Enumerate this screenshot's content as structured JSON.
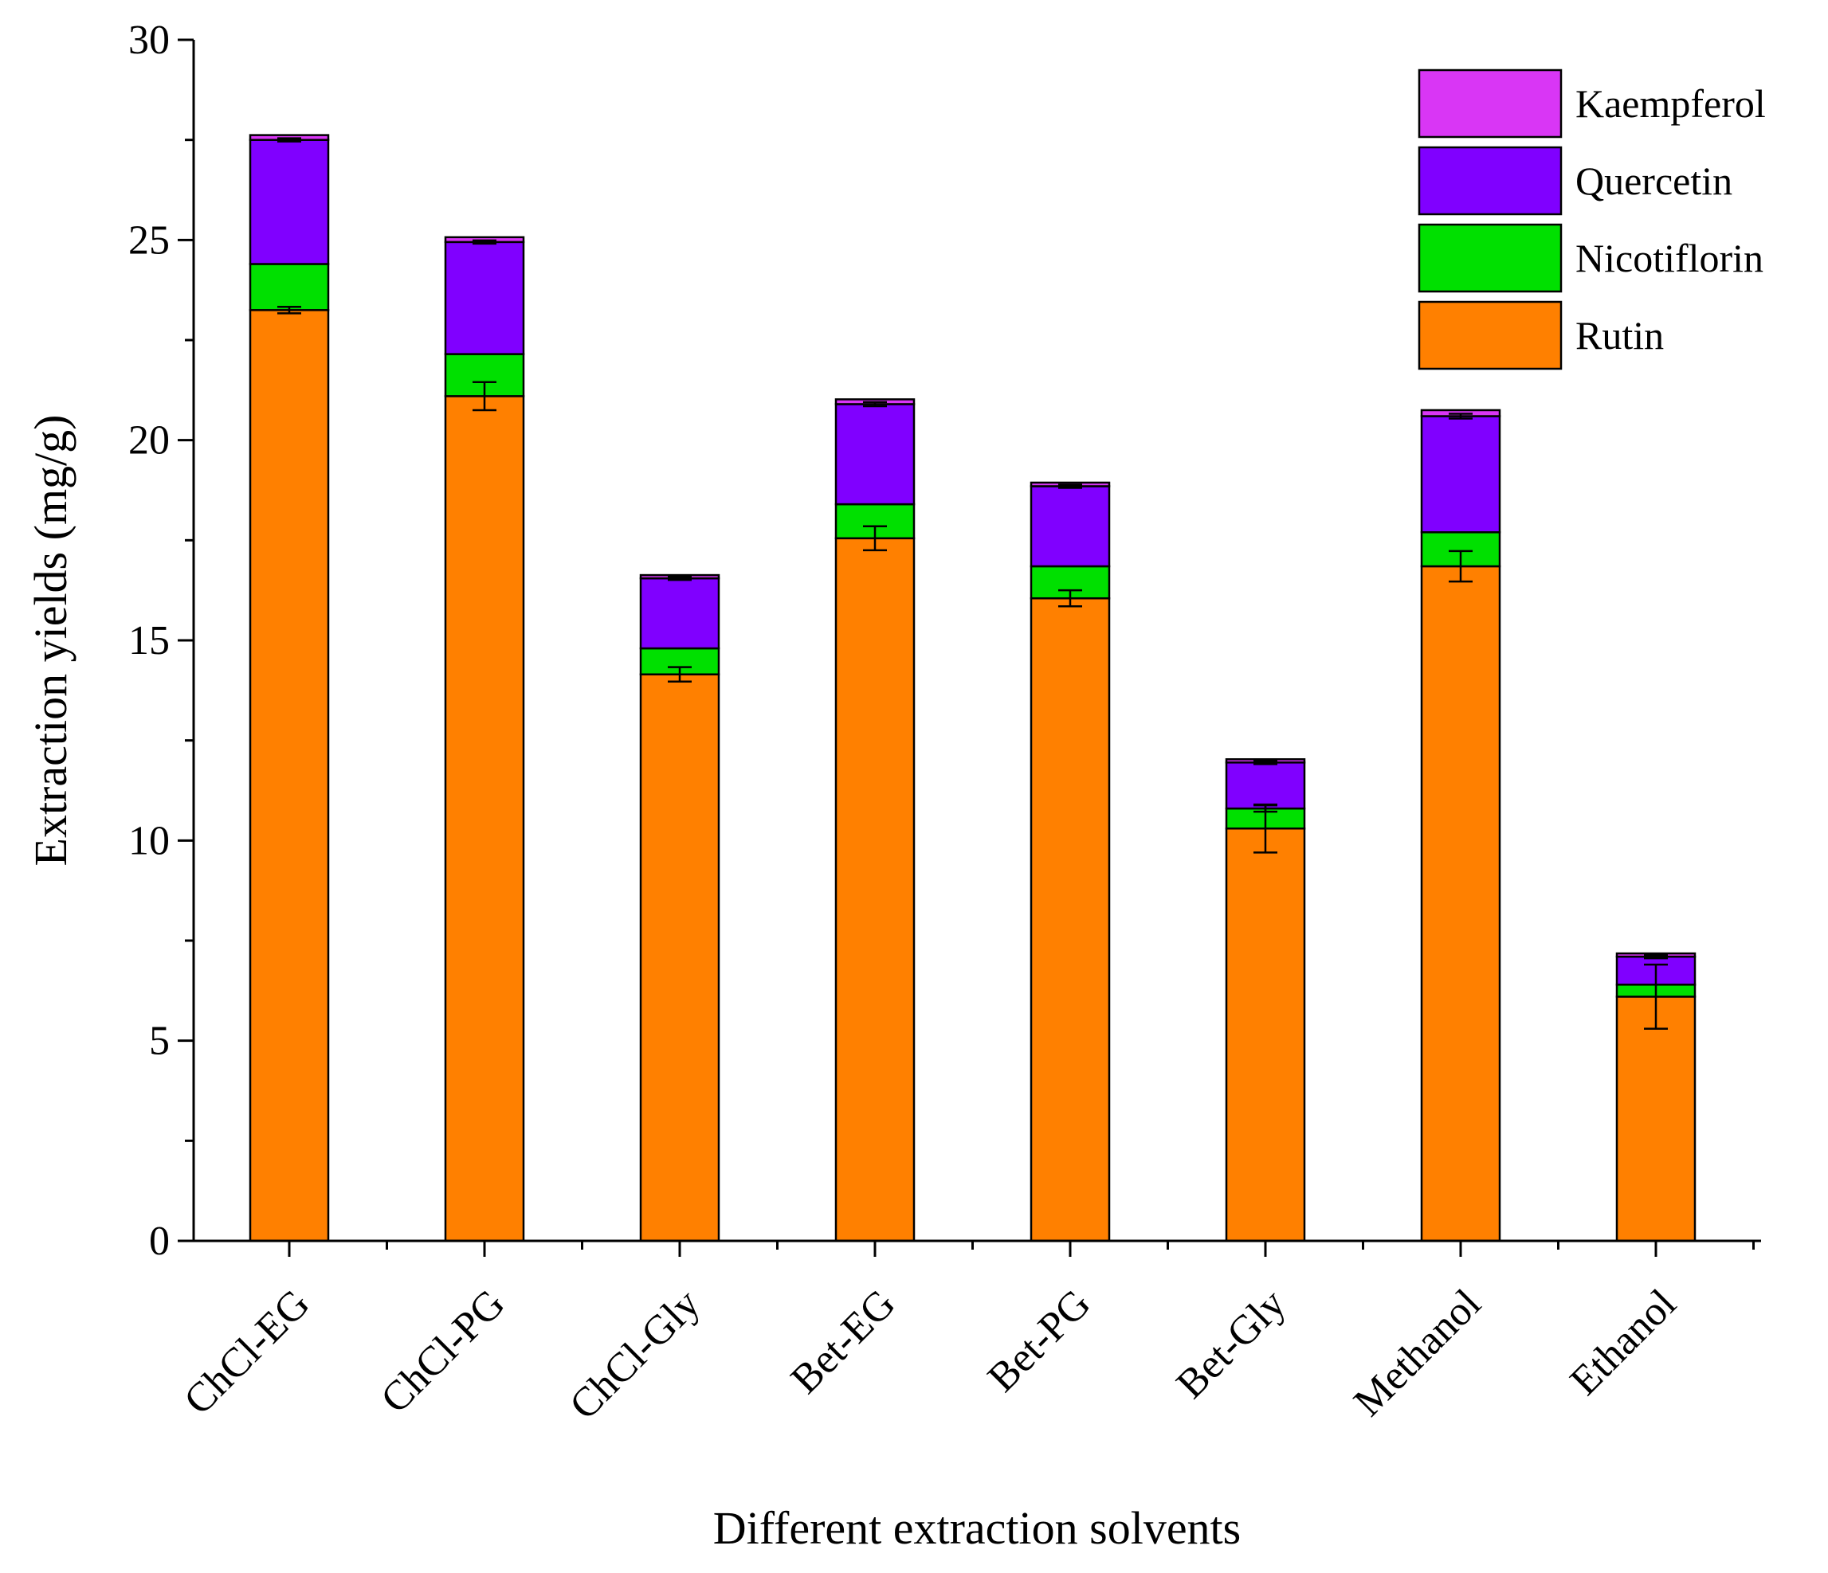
{
  "chart_data": {
    "type": "bar",
    "stacked": true,
    "title": "",
    "xlabel": "Different extraction solvents",
    "ylabel": "Extraction yields (mg/g)",
    "ylim": [
      0,
      30
    ],
    "yticks": [
      0,
      5,
      10,
      15,
      20,
      25,
      30
    ],
    "categories": [
      "ChCl-EG",
      "ChCl-PG",
      "ChCl-Gly",
      "Bet-EG",
      "Bet-PG",
      "Bet-Gly",
      "Methanol",
      "Ethanol"
    ],
    "series": [
      {
        "name": "Rutin",
        "color": "#FF8000",
        "values": [
          23.25,
          21.1,
          14.15,
          17.55,
          16.05,
          10.3,
          16.85,
          6.1
        ],
        "errors": [
          0.08,
          0.35,
          0.18,
          0.3,
          0.2,
          0.6,
          0.38,
          0.8
        ]
      },
      {
        "name": "Nicotiflorin",
        "color": "#00E000",
        "values": [
          1.15,
          1.05,
          0.65,
          0.85,
          0.8,
          0.5,
          0.85,
          0.3
        ],
        "errors": [
          0,
          0,
          0,
          0,
          0,
          0.08,
          0,
          0
        ]
      },
      {
        "name": "Quercetin",
        "color": "#8000FF",
        "values": [
          3.1,
          2.8,
          1.75,
          2.5,
          2.0,
          1.15,
          2.9,
          0.7
        ],
        "errors": [
          0.04,
          0.04,
          0.04,
          0.05,
          0.04,
          0.04,
          0.06,
          0.04
        ]
      },
      {
        "name": "Kaempferol",
        "color": "#D936F5",
        "values": [
          0.12,
          0.12,
          0.08,
          0.12,
          0.09,
          0.08,
          0.15,
          0.08
        ],
        "errors": [
          0,
          0,
          0,
          0,
          0,
          0,
          0,
          0
        ]
      }
    ],
    "legend_order": [
      "Kaempferol",
      "Quercetin",
      "Nicotiflorin",
      "Rutin"
    ],
    "legend_position": "top-right",
    "grid": false
  }
}
